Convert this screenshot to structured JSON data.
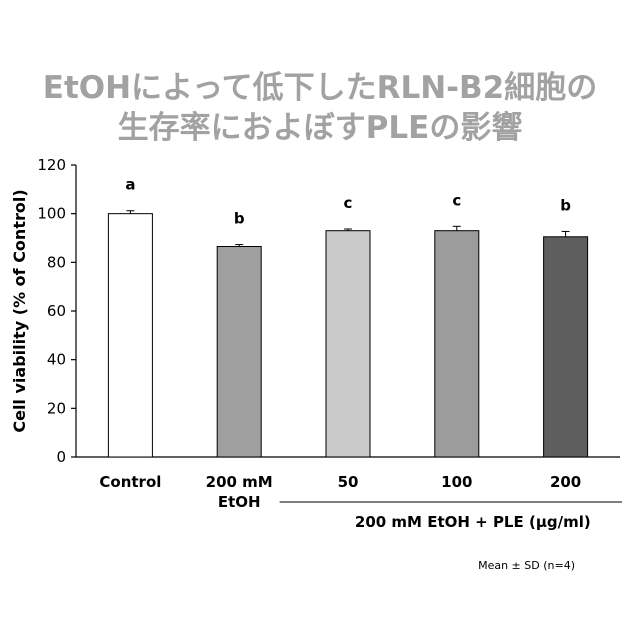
{
  "title": {
    "line1": "EtOHによって低下したRLN-B2細胞の",
    "line2": "生存率におよぼすPLEの影響"
  },
  "chart_data": {
    "type": "bar",
    "ylabel": "Cell viability (% of Control)",
    "ylim": [
      0,
      120
    ],
    "yticks": [
      0,
      20,
      40,
      60,
      80,
      100,
      120
    ],
    "categories": [
      {
        "label": [
          "Control"
        ],
        "value": 100,
        "error": 1.2,
        "sig": "a",
        "color": "#ffffff"
      },
      {
        "label": [
          "200 mM",
          "EtOH"
        ],
        "value": 86.5,
        "error": 0.8,
        "sig": "b",
        "color": "#a0a0a0"
      },
      {
        "label": [
          "50"
        ],
        "value": 93,
        "error": 0.7,
        "sig": "c",
        "color": "#c9c9c9"
      },
      {
        "label": [
          "100"
        ],
        "value": 93,
        "error": 1.8,
        "sig": "c",
        "color": "#9c9c9c"
      },
      {
        "label": [
          "200"
        ],
        "value": 90.5,
        "error": 2.2,
        "sig": "b",
        "color": "#5e5e5e"
      }
    ],
    "group_label": "200 mM EtOH + PLE (µg/ml)",
    "note": "Mean ± SD (n=4)",
    "grid": false,
    "legend": "none"
  }
}
